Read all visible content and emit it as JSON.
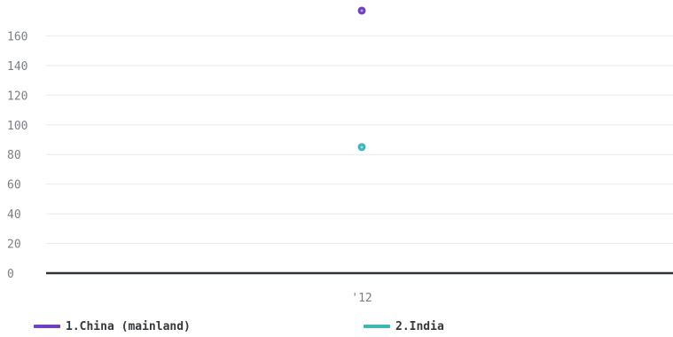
{
  "colors": {
    "series_1": "#6f3fc4",
    "series_2": "#3db8ba",
    "baseline": "#2e3338",
    "grid": "#e8eaed",
    "tick_text": "#7a7f86"
  },
  "chart_data": {
    "type": "scatter",
    "title": "",
    "xlabel": "",
    "ylabel": "",
    "categories": [
      "'12"
    ],
    "ylim": [
      0,
      170
    ],
    "yticks": [
      0,
      20,
      40,
      60,
      80,
      100,
      120,
      140,
      160
    ],
    "grid": true,
    "legend_position": "bottom-left",
    "series": [
      {
        "name": "1.China (mainland)",
        "values": [
          177
        ]
      },
      {
        "name": "2.India",
        "values": [
          85
        ]
      }
    ]
  }
}
